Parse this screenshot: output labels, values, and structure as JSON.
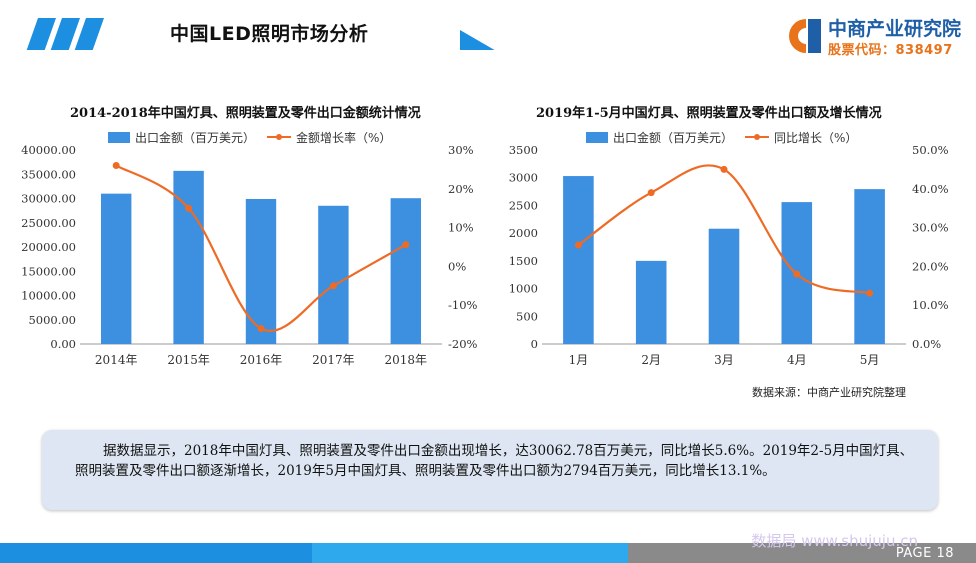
{
  "header": {
    "title": "中国LED照明市场分析"
  },
  "logo": {
    "name": "中商产业研究院",
    "stock_code": "股票代码：838497"
  },
  "chart_data": [
    {
      "type": "bar",
      "title": "2014-2018年中国灯具、照明装置及零件出口金额统计情况",
      "categories": [
        "2014年",
        "2015年",
        "2016年",
        "2017年",
        "2018年"
      ],
      "series": [
        {
          "name": "出口金额（百万美元）",
          "type": "bar",
          "axis": "left",
          "values": [
            31000,
            35700,
            29900,
            28500,
            30062.78
          ]
        },
        {
          "name": "金额增长率（%）",
          "type": "line",
          "axis": "right",
          "values": [
            26,
            15,
            -16,
            -5,
            5.6
          ]
        }
      ],
      "ylim_left": [
        0,
        40000
      ],
      "yticks_left": [
        "0.00",
        "5000.00",
        "10000.00",
        "15000.00",
        "20000.00",
        "25000.00",
        "30000.00",
        "35000.00",
        "40000.00"
      ],
      "ylim_right": [
        -20,
        30
      ],
      "yticks_right": [
        "-20%",
        "-10%",
        "0%",
        "10%",
        "20%",
        "30%"
      ],
      "colors": {
        "bar": "#3d8fe0",
        "line": "#ee6b25"
      },
      "legend": "top"
    },
    {
      "type": "bar",
      "title": "2019年1-5月中国灯具、照明装置及零件出口额及增长情况",
      "categories": [
        "1月",
        "2月",
        "3月",
        "4月",
        "5月"
      ],
      "series": [
        {
          "name": "出口金额（百万美元）",
          "type": "bar",
          "axis": "left",
          "values": [
            3030,
            1500,
            2080,
            2560,
            2794
          ]
        },
        {
          "name": "同比增长（%）",
          "type": "line",
          "axis": "right",
          "values": [
            25.5,
            39,
            45,
            18,
            13.1
          ]
        }
      ],
      "ylim_left": [
        0,
        3500
      ],
      "yticks_left": [
        "0",
        "500",
        "1000",
        "1500",
        "2000",
        "2500",
        "3000",
        "3500"
      ],
      "ylim_right": [
        0,
        50
      ],
      "yticks_right": [
        "0.0%",
        "10.0%",
        "20.0%",
        "30.0%",
        "40.0%",
        "50.0%"
      ],
      "colors": {
        "bar": "#3d8fe0",
        "line": "#ee6b25"
      },
      "legend": "top"
    }
  ],
  "source": "数据来源：中商产业研究院整理",
  "summary": "据数据显示，2018年中国灯具、照明装置及零件出口金额出现增长，达30062.78百万美元，同比增长5.6%。2019年2-5月中国灯具、照明装置及零件出口额逐渐增长，2019年5月中国灯具、照明装置及零件出口额为2794百万美元，同比增长13.1%。",
  "footer": {
    "page": "PAGE  18",
    "watermark": "数据局 www.shujuju.cn"
  }
}
